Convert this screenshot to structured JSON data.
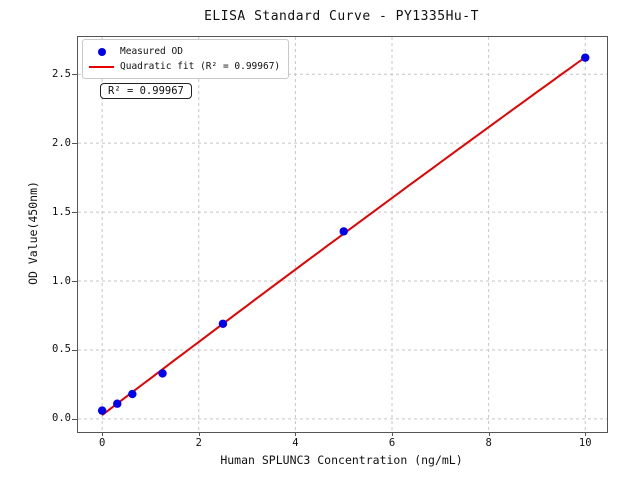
{
  "chart_data": {
    "type": "scatter",
    "title": "ELISA Standard Curve - PY1335Hu-T",
    "xlabel": "Human SPLUNC3 Concentration (ng/mL)",
    "ylabel": "OD Value(450nm)",
    "xlim": [
      -0.5,
      10.45
    ],
    "ylim": [
      -0.095,
      2.77
    ],
    "x_tick_labels": [
      "0",
      "2",
      "4",
      "6",
      "8",
      "10"
    ],
    "y_tick_labels": [
      "0.0",
      "0.5",
      "1.0",
      "1.5",
      "2.0",
      "2.5"
    ],
    "grid": true,
    "legend_position": "upper left",
    "annotation": "R² = 0.99967",
    "series": [
      {
        "name": "Measured OD",
        "type": "scatter",
        "color": "#0000ee",
        "x": [
          0,
          0.3125,
          0.625,
          1.25,
          2.5,
          5,
          10
        ],
        "y": [
          0.06,
          0.11,
          0.18,
          0.33,
          0.69,
          1.36,
          2.62
        ]
      },
      {
        "name": "Quadratic fit (R² = 0.99967)",
        "type": "line",
        "color": "#e60000",
        "fit": "quadratic",
        "fit_range": [
          0,
          10
        ],
        "r_squared": "0.99967"
      }
    ],
    "colors": {
      "point": "#0000ee",
      "line": "#e60000",
      "grid": "#c6c6c6",
      "spine": "#555555",
      "background": "#ffffff"
    }
  }
}
